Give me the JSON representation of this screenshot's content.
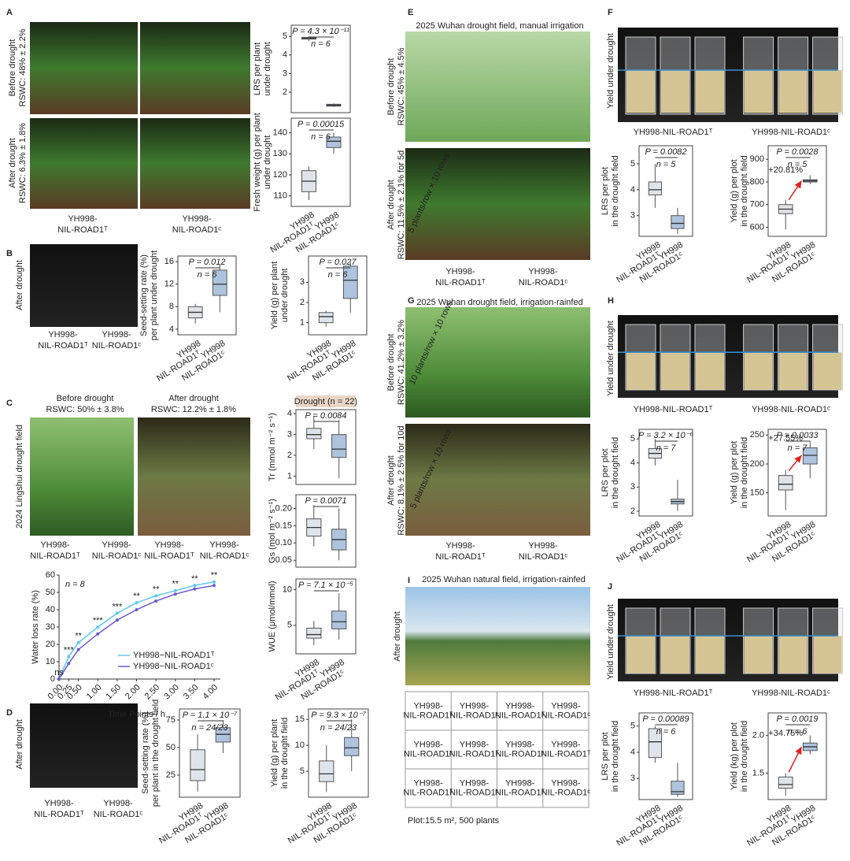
{
  "panels": {
    "A": {
      "label": "A",
      "side": [
        [
          "Before drought",
          "RSWC: 48% ± 2.2%"
        ],
        [
          "After drought",
          "RSWC: 6.3% ± 1.8%"
        ]
      ],
      "captions": [
        [
          "YH998-",
          "NIL-ROAD1ᵀ"
        ],
        [
          "YH998-",
          "NIL-ROAD1ᶜ"
        ]
      ]
    },
    "B": {
      "label": "B",
      "side": [
        "After drought"
      ],
      "captions": [
        [
          "YH998-",
          "NIL-ROAD1ᵀ"
        ],
        [
          "YH998-",
          "NIL-ROAD1ᶜ"
        ]
      ]
    },
    "C": {
      "label": "C",
      "top": [
        [
          "Before drought",
          "RSWC: 50% ± 3.8%"
        ],
        [
          "After drought",
          "RSWC: 12.2% ± 1.8%"
        ]
      ],
      "side": [
        "2024 Lingshui drought field"
      ],
      "captions": [
        [
          "YH998-",
          "NIL-ROAD1ᵀ"
        ],
        [
          "YH998-",
          "NIL-ROAD1ᶜ"
        ],
        [
          "YH998-",
          "NIL-ROAD1ᵀ"
        ],
        [
          "YH998-",
          "NIL-ROAD1ᶜ"
        ]
      ]
    },
    "D": {
      "label": "D",
      "side": [
        "After drought"
      ],
      "captions": [
        [
          "YH998-",
          "NIL-ROAD1ᵀ"
        ],
        [
          "YH998-",
          "NIL-ROAD1ᶜ"
        ]
      ]
    },
    "E": {
      "label": "E",
      "title": "2025 Wuhan drought field, manual irrigation",
      "side": [
        [
          "Before drought",
          "RSWC: 45% ± 4.5%"
        ],
        [
          "After drought",
          "RSWC: 11.5% ± 2.1% for 5d"
        ]
      ],
      "overlay": [
        "5 plants/row × 10 rows"
      ],
      "captions": [
        [
          "YH998-",
          "NIL-ROAD1ᵀ"
        ],
        [
          "YH998-",
          "NIL-ROAD1ᶜ"
        ]
      ]
    },
    "F": {
      "label": "F",
      "side": [
        "Yield under drought"
      ],
      "captions": [
        "YH998-NIL-ROAD1ᵀ",
        "YH998-NIL-ROAD1ᶜ"
      ]
    },
    "G": {
      "label": "G",
      "title": "2025 Wuhan drought field, irrigation-rainfed",
      "side": [
        [
          "Before drought",
          "RSWC: 41.2% ± 3.2%"
        ],
        [
          "After drought",
          "RSWC: 8.1% ± 2.5% for 10d"
        ]
      ],
      "overlay": [
        "10 plants/row × 10 rows",
        "5 plants/row × 10 rows"
      ],
      "captions": [
        [
          "YH998-",
          "NIL-ROAD1ᵀ"
        ],
        [
          "YH998-",
          "NIL-ROAD1ᶜ"
        ]
      ]
    },
    "H": {
      "label": "H",
      "side": [
        "Yield under drought"
      ],
      "captions": [
        "YH998-NIL-ROAD1ᵀ",
        "YH998-NIL-ROAD1ᶜ"
      ]
    },
    "I": {
      "label": "I",
      "title": "2025 Wuhan natural field, irrigation-rainfed",
      "side": [
        "After drought"
      ],
      "table": {
        "rows": [
          [
            [
              "YH998-",
              "NIL-ROAD1ᵀ"
            ],
            [
              "YH998-",
              "NIL-ROAD1ᶜ"
            ],
            [
              "YH998-",
              "NIL-ROAD1ᵀ"
            ],
            [
              "YH998-",
              "NIL-ROAD1ᶜ"
            ]
          ],
          [
            [
              "YH998-",
              "NIL-ROAD1ᶜ"
            ],
            [
              "YH998-",
              "NIL-ROAD1ᵀ"
            ],
            [
              "YH998-",
              "NIL-ROAD1ᶜ"
            ],
            [
              "YH998-",
              "NIL-ROAD1ᵀ"
            ]
          ],
          [
            [
              "YH998-",
              "NIL-ROAD1ᵀ"
            ],
            [
              "YH998-",
              "NIL-ROAD1ᶜ"
            ],
            [
              "YH998-",
              "NIL-ROAD1ᵀ"
            ],
            [
              "YH998-",
              "NIL-ROAD1ᶜ"
            ]
          ]
        ]
      },
      "footnote": "Plot:15.5 m², 500 plants"
    },
    "J": {
      "label": "J",
      "side": [
        "Yield under drought"
      ],
      "captions": [
        "YH998-NIL-ROAD1ᵀ",
        "YH998-NIL-ROAD1ᶜ"
      ]
    }
  },
  "chart_data": [
    {
      "type": "box",
      "ylabel": [
        "LRS per plant",
        "under drought"
      ],
      "p": "P = 4.3 × 10⁻¹¹",
      "n": "n = 6",
      "ylim": [
        0.9,
        5.6
      ],
      "yticks": [
        2,
        3,
        4,
        5
      ],
      "boxes": [
        {
          "low": 4.75,
          "q1": 4.85,
          "median": 4.9,
          "q3": 4.95,
          "high": 5.0,
          "color": "#dfe4ea"
        },
        {
          "low": 1.2,
          "q1": 1.25,
          "median": 1.3,
          "q3": 1.35,
          "high": 1.4,
          "color": "#aec3de"
        }
      ]
    },
    {
      "type": "box",
      "ylabel": [
        "Fresh weight (g) per plant",
        "under drought"
      ],
      "p": "P = 0.00015",
      "n": "n = 6",
      "ylim": [
        105,
        147
      ],
      "yticks": [
        110,
        120,
        130,
        140
      ],
      "categories": [
        [
          "YH998",
          "NIL-ROAD1ᵀ"
        ],
        [
          "YH998",
          "NIL-ROAD1ᶜ"
        ]
      ],
      "boxes": [
        {
          "low": 108,
          "q1": 112,
          "median": 117,
          "q3": 122,
          "high": 124,
          "color": "#dfe4ea"
        },
        {
          "low": 130,
          "q1": 133,
          "median": 136,
          "q3": 138,
          "high": 140,
          "color": "#aec3de"
        }
      ]
    },
    {
      "type": "box",
      "ylabel": [
        "Seed-setting rate (%)",
        "per plant under drought"
      ],
      "p": "P = 0.012",
      "n": "n = 6",
      "ylim": [
        3,
        17
      ],
      "yticks": [
        4,
        8,
        12,
        16
      ],
      "categories": [
        [
          "YH998",
          "NIL-ROAD1ᵀ"
        ],
        [
          "YH998",
          "NIL-ROAD1ᶜ"
        ]
      ],
      "boxes": [
        {
          "low": 5,
          "q1": 6,
          "median": 7,
          "q3": 8,
          "high": 8.5,
          "color": "#dfe4ea"
        },
        {
          "low": 7,
          "q1": 10,
          "median": 12,
          "q3": 14.5,
          "high": 15.5,
          "color": "#aec3de"
        }
      ]
    },
    {
      "type": "box",
      "ylabel": [
        "Yield (g) per plant",
        "under drought"
      ],
      "p": "P = 0.027",
      "n": "n = 6",
      "ylim": [
        0.4,
        4.3
      ],
      "yticks": [
        1,
        2,
        3
      ],
      "categories": [
        [
          "YH998",
          "NIL-ROAD1ᵀ"
        ],
        [
          "YH998",
          "NIL-ROAD1ᶜ"
        ]
      ],
      "boxes": [
        {
          "low": 0.8,
          "q1": 1,
          "median": 1.3,
          "q3": 1.5,
          "high": 1.6,
          "color": "#dfe4ea"
        },
        {
          "low": 1.5,
          "q1": 2.2,
          "median": 3.1,
          "q3": 3.8,
          "high": 4.0,
          "color": "#aec3de"
        }
      ]
    },
    {
      "type": "box",
      "header": "Drought (n = 22)",
      "ylabel": [
        "Tr (mmol m⁻² s⁻¹)"
      ],
      "p": "P = 0.0084",
      "ylim": [
        0.6,
        4.2
      ],
      "yticks": [
        1,
        2,
        3,
        4
      ],
      "boxes": [
        {
          "low": 2.3,
          "q1": 2.8,
          "median": 3.0,
          "q3": 3.3,
          "high": 3.9,
          "color": "#dfe4ea"
        },
        {
          "low": 0.9,
          "q1": 1.9,
          "median": 2.3,
          "q3": 3.0,
          "high": 3.7,
          "color": "#aec3de"
        }
      ]
    },
    {
      "type": "box",
      "ylabel": [
        "Gs (mol m⁻² s⁻¹)"
      ],
      "p": "P = 0.0071",
      "ylim": [
        0.03,
        0.24
      ],
      "yticks": [
        0.05,
        {
          "value": 0.1,
          "label": "0.10"
        },
        0.15,
        {
          "value": 0.2,
          "label": "0.20"
        }
      ],
      "boxes": [
        {
          "low": 0.09,
          "q1": 0.12,
          "median": 0.145,
          "q3": 0.17,
          "high": 0.21,
          "color": "#dfe4ea"
        },
        {
          "low": 0.05,
          "q1": 0.08,
          "median": 0.11,
          "q3": 0.14,
          "high": 0.2,
          "color": "#aec3de"
        }
      ]
    },
    {
      "type": "box",
      "ylabel": [
        "WUE (μmol/mmol)"
      ],
      "p": "P = 7.1 × 10⁻⁵",
      "ylim": [
        1,
        11.5
      ],
      "yticks": [
        5,
        10
      ],
      "categories": [
        [
          "YH998",
          "NIL-ROAD1ᵀ"
        ],
        [
          "YH998",
          "NIL-ROAD1ᶜ"
        ]
      ],
      "boxes": [
        {
          "low": 2.2,
          "q1": 3.2,
          "median": 3.7,
          "q3": 4.6,
          "high": 5.6,
          "color": "#dfe4ea"
        },
        {
          "low": 3.0,
          "q1": 4.5,
          "median": 5.5,
          "q3": 7,
          "high": 9.5,
          "color": "#aec3de"
        }
      ]
    },
    {
      "type": "line",
      "n": "n = 8",
      "xlabel": "Time Points / h",
      "ylabel": "Water loss rate (%)",
      "x": [
        0,
        0.25,
        0.5,
        1,
        1.5,
        2,
        2.5,
        3,
        3.5,
        4
      ],
      "xlim": [
        0,
        4
      ],
      "xticks": [
        {
          "value": 0,
          "label": "0.00"
        },
        {
          "value": 0.25,
          "label": "0.25"
        },
        {
          "value": 0.5,
          "label": "0.50"
        },
        {
          "value": 1,
          "label": "1.00"
        },
        {
          "value": 1.5,
          "label": "1.50"
        },
        {
          "value": 2,
          "label": "2.00"
        },
        {
          "value": 2.5,
          "label": "2.50"
        },
        {
          "value": 3,
          "label": "3.00"
        },
        {
          "value": 3.5,
          "label": "3.50"
        },
        {
          "value": 4,
          "label": "4.00"
        }
      ],
      "ylim": [
        0,
        60
      ],
      "yticks": [
        0,
        10,
        20,
        30,
        40,
        50,
        60
      ],
      "significance": [
        "ns",
        "***",
        "**",
        "***",
        "***",
        "**",
        "**",
        "**",
        "**",
        "**"
      ],
      "series": [
        {
          "name": "YH998−NIL-ROAD1ᵀ",
          "color": "#5cc8f2",
          "values": [
            0,
            13,
            21,
            30,
            38,
            44,
            48,
            51,
            54,
            56
          ]
        },
        {
          "name": "YH998−NIL-ROAD1ᶜ",
          "color": "#6a5acd",
          "values": [
            0,
            9,
            17,
            26,
            34,
            40,
            45,
            49,
            52,
            54
          ]
        }
      ]
    },
    {
      "type": "box",
      "ylabel": [
        "Seed-setting rate (%)",
        "per plant in the drought field"
      ],
      "p": "P = 1.1 × 10⁻⁷",
      "n": "n = 24/23",
      "ylim": [
        5,
        85
      ],
      "yticks": [
        25,
        50,
        75
      ],
      "categories": [
        [
          "YH998",
          "NIL-ROAD1ᵀ"
        ],
        [
          "YH998",
          "NIL-ROAD1ᶜ"
        ]
      ],
      "boxes": [
        {
          "low": 10,
          "q1": 20,
          "median": 30,
          "q3": 48,
          "high": 62,
          "color": "#dfe4ea"
        },
        {
          "low": 45,
          "q1": 55,
          "median": 62,
          "q3": 68,
          "high": 75,
          "color": "#aec3de"
        }
      ]
    },
    {
      "type": "box",
      "ylabel": [
        "Yield (g) per plant",
        "in the drought field"
      ],
      "p": "P = 9.3 × 10⁻⁷",
      "n": "n = 24/23",
      "ylim": [
        0,
        17
      ],
      "yticks": [
        5,
        10,
        15
      ],
      "categories": [
        [
          "YH998",
          "NIL-ROAD1ᵀ"
        ],
        [
          "YH998",
          "NIL-ROAD1ᶜ"
        ]
      ],
      "boxes": [
        {
          "low": 1,
          "q1": 3,
          "median": 4.5,
          "q3": 7,
          "high": 10,
          "color": "#dfe4ea"
        },
        {
          "low": 5,
          "q1": 8,
          "median": 9.5,
          "q3": 11.5,
          "high": 15,
          "color": "#aec3de"
        }
      ]
    },
    {
      "type": "box",
      "ylabel": [
        "LRS per plot",
        "in the drought field"
      ],
      "p": "P = 0.0082",
      "n": "n = 5",
      "ylim": [
        2.2,
        5.7
      ],
      "yticks": [
        3,
        4,
        5
      ],
      "categories": [
        [
          "YH998",
          "NIL-ROAD1ᵀ"
        ],
        [
          "YH998",
          "NIL-ROAD1ᶜ"
        ]
      ],
      "boxes": [
        {
          "low": 3.3,
          "q1": 3.8,
          "median": 4.0,
          "q3": 4.3,
          "high": 5.0,
          "color": "#dfe4ea"
        },
        {
          "low": 2.3,
          "q1": 2.5,
          "median": 2.7,
          "q3": 3.0,
          "high": 3.3,
          "color": "#aec3de"
        }
      ]
    },
    {
      "type": "box",
      "ylabel": [
        "Yield (g) per plot",
        "in the drought field"
      ],
      "p": "P = 0.0028",
      "n": "n = 5",
      "annotation": "+20.81%",
      "ylim": [
        560,
        960
      ],
      "yticks": [
        600,
        700,
        800,
        900
      ],
      "categories": [
        [
          "YH998",
          "NIL-ROAD1ᵀ"
        ],
        [
          "YH998",
          "NIL-ROAD1ᶜ"
        ]
      ],
      "boxes": [
        {
          "low": 590,
          "q1": 660,
          "median": 680,
          "q3": 700,
          "high": 720,
          "color": "#dfe4ea"
        },
        {
          "low": 790,
          "q1": 800,
          "median": 805,
          "q3": 810,
          "high": 830,
          "color": "#aec3de"
        }
      ]
    },
    {
      "type": "box",
      "ylabel": [
        "LRS per plot",
        "in the drought field"
      ],
      "p": "P = 3.2 × 10⁻⁶",
      "n": "n = 7",
      "ylim": [
        1.8,
        5.4
      ],
      "yticks": [
        2,
        3,
        4,
        5
      ],
      "categories": [
        [
          "YH998",
          "NIL-ROAD1ᵀ"
        ],
        [
          "YH998",
          "NIL-ROAD1ᶜ"
        ]
      ],
      "boxes": [
        {
          "low": 3.9,
          "q1": 4.2,
          "median": 4.4,
          "q3": 4.6,
          "high": 5.0,
          "color": "#dfe4ea"
        },
        {
          "low": 2.0,
          "q1": 2.3,
          "median": 2.4,
          "q3": 2.5,
          "high": 3.3,
          "color": "#aec3de"
        }
      ]
    },
    {
      "type": "box",
      "ylabel": [
        "Yield (g) per plot",
        "in the drought field"
      ],
      "p": "P = 0.0033",
      "n": "n = 7",
      "annotation": "+27.55%",
      "ylim": [
        110,
        260
      ],
      "yticks": [
        150,
        200,
        250
      ],
      "categories": [
        [
          "YH998",
          "NIL-ROAD1ᵀ"
        ],
        [
          "YH998",
          "NIL-ROAD1ᶜ"
        ]
      ],
      "boxes": [
        {
          "low": 120,
          "q1": 155,
          "median": 165,
          "q3": 180,
          "high": 190,
          "color": "#dfe4ea"
        },
        {
          "low": 175,
          "q1": 200,
          "median": 215,
          "q3": 228,
          "high": 240,
          "color": "#aec3de"
        }
      ]
    },
    {
      "type": "box",
      "ylabel": [
        "LRS per plot",
        "in the drought field"
      ],
      "p": "P = 0.00089",
      "n": "n = 6",
      "ylim": [
        2.2,
        5.5
      ],
      "yticks": [
        3,
        4,
        5
      ],
      "categories": [
        [
          "YH998",
          "NIL-ROAD1ᵀ"
        ],
        [
          "YH998",
          "NIL-ROAD1ᶜ"
        ]
      ],
      "boxes": [
        {
          "low": 3.6,
          "q1": 3.8,
          "median": 4.4,
          "q3": 4.9,
          "high": 5.0,
          "color": "#dfe4ea"
        },
        {
          "low": 2.3,
          "q1": 2.4,
          "median": 2.5,
          "q3": 2.9,
          "high": 3.6,
          "color": "#aec3de"
        }
      ]
    },
    {
      "type": "box",
      "ylabel": [
        "Yield (kg) per plot",
        "in the drought field"
      ],
      "p": "P = 0.0019",
      "n": "n = 6",
      "annotation": "+34.75%",
      "ylim": [
        1.15,
        2.3
      ],
      "yticks": [
        1.5,
        {
          "value": 2,
          "label": "2.0"
        }
      ],
      "categories": [
        [
          "YH998",
          "NIL-ROAD1ᵀ"
        ],
        [
          "YH998",
          "NIL-ROAD1ᶜ"
        ]
      ],
      "boxes": [
        {
          "low": 1.2,
          "q1": 1.3,
          "median": 1.35,
          "q3": 1.45,
          "high": 1.5,
          "color": "#dfe4ea"
        },
        {
          "low": 1.75,
          "q1": 1.8,
          "median": 1.85,
          "q3": 1.9,
          "high": 2.0,
          "color": "#aec3de"
        }
      ]
    }
  ]
}
